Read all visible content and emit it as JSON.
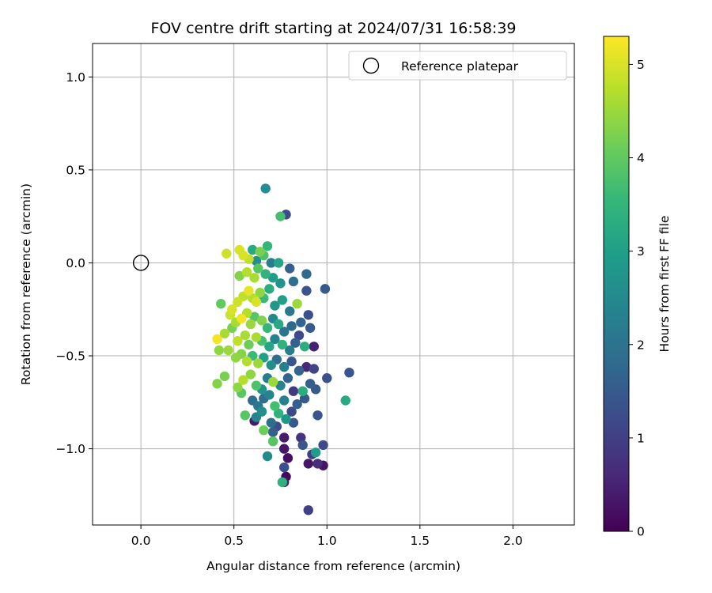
{
  "chart_data": {
    "type": "scatter",
    "title": "FOV centre drift starting at 2024/07/31 16:58:39",
    "xlabel": "Angular distance from reference (arcmin)",
    "ylabel": "Rotation from reference (arcmin)",
    "xlim": [
      -0.26,
      2.33
    ],
    "ylim": [
      -1.41,
      1.18
    ],
    "xticks": [
      0.0,
      0.5,
      1.0,
      1.5,
      2.0
    ],
    "xtick_labels": [
      "0.0",
      "0.5",
      "1.0",
      "1.5",
      "2.0"
    ],
    "yticks": [
      -1.0,
      -0.5,
      0.0,
      0.5,
      1.0
    ],
    "ytick_labels": [
      "−1.0",
      "−0.5",
      "0.0",
      "0.5",
      "1.0"
    ],
    "grid": true,
    "legend": {
      "placement": "top-right",
      "entries": [
        "Reference platepar"
      ]
    },
    "reference_point": {
      "x": 0.0,
      "y": 0.0
    },
    "colorbar": {
      "label": "Hours from first FF file",
      "range": [
        0,
        5.3
      ],
      "ticks": [
        0,
        1,
        2,
        3,
        4,
        5
      ],
      "tick_labels": [
        "0",
        "1",
        "2",
        "3",
        "4",
        "5"
      ],
      "colormap": [
        "#440154",
        "#482878",
        "#3e4989",
        "#31688e",
        "#26828e",
        "#1f9e89",
        "#35b779",
        "#6ece58",
        "#b5de2b",
        "#fde725"
      ]
    },
    "points": [
      [
        0.67,
        0.4,
        2.6
      ],
      [
        0.75,
        0.25,
        3.7
      ],
      [
        0.78,
        0.26,
        1.2
      ],
      [
        0.46,
        0.05,
        4.9
      ],
      [
        0.53,
        0.07,
        5.0
      ],
      [
        0.55,
        0.04,
        5.0
      ],
      [
        0.6,
        0.07,
        3.2
      ],
      [
        0.68,
        0.09,
        3.5
      ],
      [
        0.64,
        0.06,
        4.2
      ],
      [
        0.66,
        0.04,
        3.8
      ],
      [
        0.58,
        0.02,
        4.8
      ],
      [
        0.62,
        0.01,
        2.6
      ],
      [
        0.7,
        0.0,
        2.2
      ],
      [
        0.74,
        0.0,
        3.1
      ],
      [
        0.8,
        -0.03,
        1.6
      ],
      [
        0.89,
        -0.06,
        1.8
      ],
      [
        0.99,
        -0.14,
        1.5
      ],
      [
        0.53,
        -0.07,
        4.3
      ],
      [
        0.57,
        -0.05,
        4.7
      ],
      [
        0.61,
        -0.08,
        4.6
      ],
      [
        0.63,
        -0.03,
        3.9
      ],
      [
        0.67,
        -0.06,
        3.4
      ],
      [
        0.71,
        -0.08,
        2.9
      ],
      [
        0.75,
        -0.11,
        2.7
      ],
      [
        0.82,
        -0.1,
        1.9
      ],
      [
        0.89,
        -0.15,
        1.4
      ],
      [
        0.43,
        -0.22,
        4.0
      ],
      [
        0.49,
        -0.25,
        5.0
      ],
      [
        0.52,
        -0.21,
        4.9
      ],
      [
        0.55,
        -0.18,
        4.8
      ],
      [
        0.58,
        -0.15,
        5.1
      ],
      [
        0.6,
        -0.19,
        4.7
      ],
      [
        0.62,
        -0.21,
        5.0
      ],
      [
        0.64,
        -0.16,
        4.4
      ],
      [
        0.66,
        -0.19,
        3.6
      ],
      [
        0.69,
        -0.14,
        3.3
      ],
      [
        0.72,
        -0.23,
        2.8
      ],
      [
        0.76,
        -0.2,
        3.0
      ],
      [
        0.8,
        -0.26,
        2.1
      ],
      [
        0.84,
        -0.22,
        4.5
      ],
      [
        0.86,
        -0.32,
        1.7
      ],
      [
        0.9,
        -0.28,
        1.3
      ],
      [
        0.48,
        -0.28,
        4.9
      ],
      [
        0.51,
        -0.32,
        4.6
      ],
      [
        0.54,
        -0.3,
        5.2
      ],
      [
        0.57,
        -0.27,
        4.7
      ],
      [
        0.59,
        -0.33,
        4.5
      ],
      [
        0.61,
        -0.29,
        3.9
      ],
      [
        0.65,
        -0.31,
        4.3
      ],
      [
        0.68,
        -0.35,
        3.5
      ],
      [
        0.71,
        -0.3,
        2.5
      ],
      [
        0.74,
        -0.33,
        3.2
      ],
      [
        0.77,
        -0.37,
        2.0
      ],
      [
        0.81,
        -0.34,
        1.8
      ],
      [
        0.85,
        -0.39,
        1.2
      ],
      [
        0.91,
        -0.35,
        1.5
      ],
      [
        0.41,
        -0.41,
        5.2
      ],
      [
        0.45,
        -0.38,
        4.6
      ],
      [
        0.49,
        -0.35,
        4.2
      ],
      [
        0.52,
        -0.42,
        4.8
      ],
      [
        0.56,
        -0.39,
        4.6
      ],
      [
        0.58,
        -0.44,
        4.1
      ],
      [
        0.62,
        -0.4,
        4.6
      ],
      [
        0.65,
        -0.42,
        3.7
      ],
      [
        0.69,
        -0.45,
        3.1
      ],
      [
        0.72,
        -0.41,
        2.4
      ],
      [
        0.76,
        -0.44,
        3.4
      ],
      [
        0.8,
        -0.47,
        2.2
      ],
      [
        0.83,
        -0.43,
        1.6
      ],
      [
        0.88,
        -0.45,
        3.3
      ],
      [
        0.93,
        -0.45,
        0.5
      ],
      [
        0.42,
        -0.47,
        4.4
      ],
      [
        0.47,
        -0.47,
        4.5
      ],
      [
        0.51,
        -0.51,
        4.4
      ],
      [
        0.54,
        -0.49,
        4.3
      ],
      [
        0.57,
        -0.53,
        4.7
      ],
      [
        0.6,
        -0.5,
        3.6
      ],
      [
        0.63,
        -0.54,
        4.5
      ],
      [
        0.66,
        -0.51,
        3.0
      ],
      [
        0.7,
        -0.55,
        2.6
      ],
      [
        0.73,
        -0.52,
        1.9
      ],
      [
        0.77,
        -0.56,
        2.3
      ],
      [
        0.81,
        -0.53,
        1.4
      ],
      [
        0.85,
        -0.58,
        1.7
      ],
      [
        0.89,
        -0.56,
        0.6
      ],
      [
        0.93,
        -0.57,
        1.1
      ],
      [
        1.0,
        -0.62,
        1.3
      ],
      [
        1.12,
        -0.59,
        1.4
      ],
      [
        0.41,
        -0.65,
        4.3
      ],
      [
        0.45,
        -0.61,
        4.2
      ],
      [
        0.52,
        -0.67,
        4.4
      ],
      [
        0.55,
        -0.63,
        4.7
      ],
      [
        0.59,
        -0.6,
        4.4
      ],
      [
        0.62,
        -0.66,
        3.8
      ],
      [
        0.65,
        -0.68,
        2.7
      ],
      [
        0.68,
        -0.62,
        2.2
      ],
      [
        0.71,
        -0.64,
        4.5
      ],
      [
        0.75,
        -0.66,
        2.4
      ],
      [
        0.79,
        -0.62,
        1.7
      ],
      [
        0.82,
        -0.69,
        0.9
      ],
      [
        0.87,
        -0.69,
        3.3
      ],
      [
        0.91,
        -0.65,
        1.6
      ],
      [
        0.94,
        -0.68,
        1.5
      ],
      [
        1.1,
        -0.74,
        3.2
      ],
      [
        0.54,
        -0.7,
        3.9
      ],
      [
        0.6,
        -0.74,
        1.9
      ],
      [
        0.63,
        -0.77,
        2.1
      ],
      [
        0.66,
        -0.73,
        1.9
      ],
      [
        0.69,
        -0.71,
        2.4
      ],
      [
        0.72,
        -0.77,
        3.7
      ],
      [
        0.77,
        -0.74,
        2.3
      ],
      [
        0.81,
        -0.8,
        1.2
      ],
      [
        0.84,
        -0.76,
        1.6
      ],
      [
        0.88,
        -0.73,
        1.5
      ],
      [
        0.56,
        -0.82,
        3.9
      ],
      [
        0.62,
        -0.83,
        2.4
      ],
      [
        0.65,
        -0.8,
        2.6
      ],
      [
        0.7,
        -0.86,
        1.9
      ],
      [
        0.74,
        -0.81,
        3.4
      ],
      [
        0.78,
        -0.84,
        2.8
      ],
      [
        0.82,
        -0.86,
        1.5
      ],
      [
        0.95,
        -0.82,
        1.4
      ],
      [
        0.61,
        -0.85,
        0.4
      ],
      [
        0.66,
        -0.9,
        4.1
      ],
      [
        0.71,
        -0.91,
        1.6
      ],
      [
        0.73,
        -0.88,
        1.2
      ],
      [
        0.77,
        -0.94,
        0.4
      ],
      [
        0.86,
        -0.94,
        0.8
      ],
      [
        0.71,
        -0.96,
        3.9
      ],
      [
        0.77,
        -1.0,
        0.3
      ],
      [
        0.87,
        -0.98,
        1.4
      ],
      [
        0.98,
        -0.98,
        1.2
      ],
      [
        0.68,
        -1.04,
        2.5
      ],
      [
        0.79,
        -1.05,
        0.2
      ],
      [
        0.94,
        -1.02,
        2.9
      ],
      [
        0.92,
        -1.03,
        1.0
      ],
      [
        0.77,
        -1.1,
        1.3
      ],
      [
        0.9,
        -1.08,
        0.3
      ],
      [
        0.95,
        -1.08,
        0.7
      ],
      [
        0.98,
        -1.09,
        0.3
      ],
      [
        0.78,
        -1.15,
        0.1
      ],
      [
        0.77,
        -1.18,
        0.4
      ],
      [
        0.76,
        -1.18,
        3.4
      ],
      [
        0.9,
        -1.33,
        1.0
      ]
    ]
  }
}
